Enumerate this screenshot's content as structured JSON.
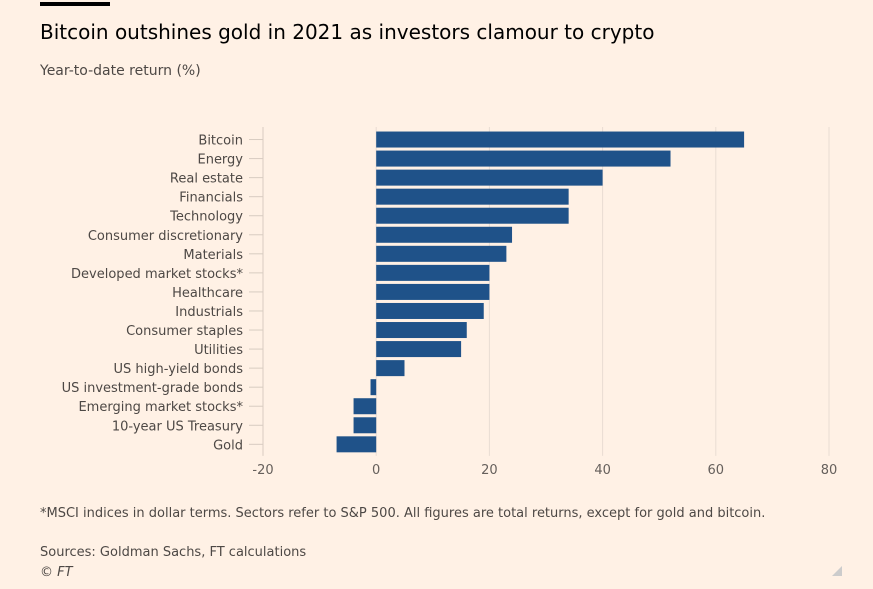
{
  "title": "Bitcoin outshines gold in 2021 as investors clamour to crypto",
  "subtitle": "Year-to-date return (%)",
  "chart_data": {
    "type": "bar",
    "orientation": "horizontal",
    "categories": [
      "Bitcoin",
      "Energy",
      "Real estate",
      "Financials",
      "Technology",
      "Consumer discretionary",
      "Materials",
      "Developed market stocks*",
      "Healthcare",
      "Industrials",
      "Consumer staples",
      "Utilities",
      "US high-yield bonds",
      "US investment-grade bonds",
      "Emerging market stocks*",
      "10-year US Treasury",
      "Gold"
    ],
    "values": [
      65,
      52,
      40,
      34,
      34,
      24,
      23,
      20,
      20,
      19,
      16,
      15,
      5,
      -1,
      -4,
      -4,
      -7
    ],
    "xlim": [
      -20,
      80
    ],
    "xticks": [
      "-20",
      "0",
      "20",
      "40",
      "60",
      "80"
    ],
    "grid": true,
    "bar_color": "#1f5289"
  },
  "footnote": "*MSCI indices in dollar terms. Sectors refer to S&P 500. All figures are total returns, except for gold and bitcoin.",
  "sources": "Sources: Goldman Sachs, FT calculations",
  "copyright": "© FT"
}
